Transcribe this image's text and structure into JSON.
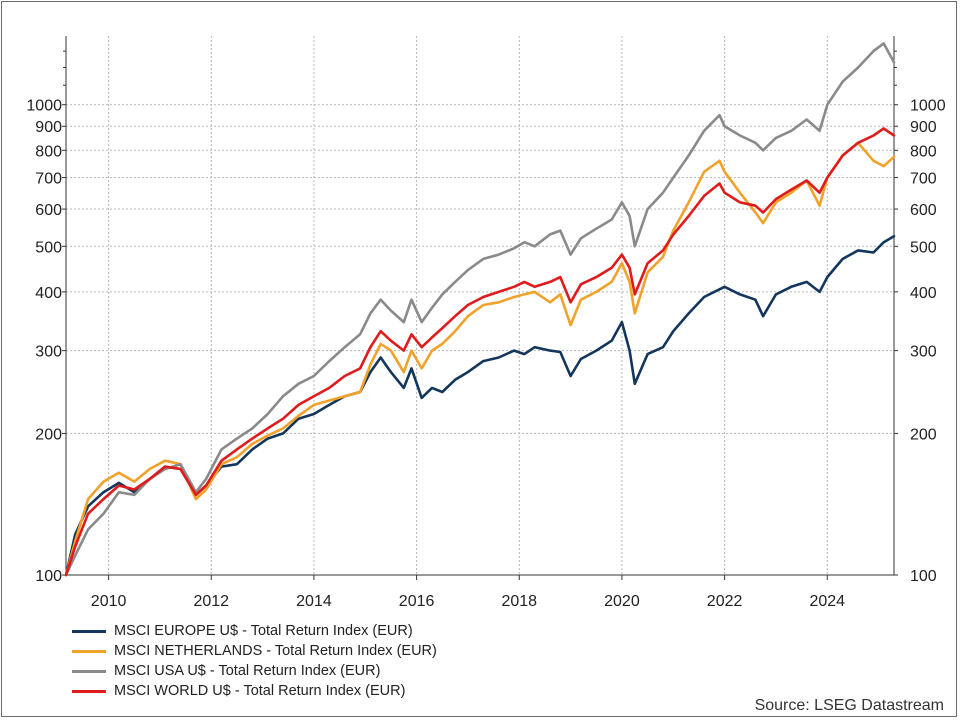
{
  "chart_data": {
    "type": "line",
    "y_scale": "log",
    "ylim": [
      100,
      1400
    ],
    "xlim": [
      2009.17,
      2025.3
    ],
    "yticks": [
      100,
      200,
      300,
      400,
      500,
      600,
      700,
      800,
      900,
      1000
    ],
    "xticks": [
      2010,
      2012,
      2014,
      2016,
      2018,
      2020,
      2022,
      2024
    ],
    "grid": true,
    "legend_position": "bottom",
    "source": "Source: LSEG Datastream",
    "series": [
      {
        "name": "MSCI EUROPE U$ - Total Return Index (EUR)",
        "color": "#14365c",
        "x": [
          2009.17,
          2009.35,
          2009.6,
          2009.9,
          2010.2,
          2010.5,
          2010.8,
          2011.1,
          2011.4,
          2011.7,
          2011.9,
          2012.2,
          2012.5,
          2012.8,
          2013.1,
          2013.4,
          2013.7,
          2014.0,
          2014.3,
          2014.6,
          2014.9,
          2015.1,
          2015.3,
          2015.5,
          2015.75,
          2015.9,
          2016.1,
          2016.3,
          2016.5,
          2016.75,
          2017.0,
          2017.3,
          2017.6,
          2017.9,
          2018.1,
          2018.3,
          2018.6,
          2018.8,
          2019.0,
          2019.2,
          2019.5,
          2019.8,
          2020.0,
          2020.15,
          2020.25,
          2020.5,
          2020.8,
          2021.0,
          2021.3,
          2021.6,
          2021.9,
          2022.0,
          2022.3,
          2022.6,
          2022.75,
          2023.0,
          2023.3,
          2023.6,
          2023.85,
          2024.0,
          2024.3,
          2024.6,
          2024.9,
          2025.1,
          2025.3
        ],
        "values": [
          100,
          122,
          140,
          150,
          157,
          150,
          160,
          170,
          168,
          148,
          155,
          170,
          172,
          185,
          195,
          200,
          215,
          220,
          230,
          240,
          245,
          270,
          290,
          270,
          250,
          275,
          238,
          250,
          245,
          260,
          270,
          285,
          290,
          300,
          295,
          305,
          300,
          298,
          265,
          288,
          300,
          315,
          345,
          300,
          255,
          295,
          305,
          330,
          360,
          390,
          405,
          410,
          395,
          385,
          355,
          395,
          410,
          420,
          400,
          430,
          470,
          490,
          485,
          510,
          525
        ]
      },
      {
        "name": "MSCI NETHERLANDS - Total Return Index (EUR)",
        "color": "#f0a22a",
        "x": [
          2009.17,
          2009.35,
          2009.6,
          2009.9,
          2010.2,
          2010.5,
          2010.8,
          2011.1,
          2011.4,
          2011.7,
          2011.9,
          2012.2,
          2012.5,
          2012.8,
          2013.1,
          2013.4,
          2013.7,
          2014.0,
          2014.3,
          2014.6,
          2014.9,
          2015.1,
          2015.3,
          2015.5,
          2015.75,
          2015.9,
          2016.1,
          2016.3,
          2016.5,
          2016.75,
          2017.0,
          2017.3,
          2017.6,
          2017.9,
          2018.1,
          2018.3,
          2018.6,
          2018.8,
          2019.0,
          2019.2,
          2019.5,
          2019.8,
          2020.0,
          2020.15,
          2020.25,
          2020.5,
          2020.8,
          2021.0,
          2021.3,
          2021.6,
          2021.9,
          2022.0,
          2022.3,
          2022.6,
          2022.75,
          2023.0,
          2023.3,
          2023.6,
          2023.85,
          2024.0,
          2024.3,
          2024.6,
          2024.9,
          2025.1,
          2025.3
        ],
        "values": [
          100,
          118,
          145,
          158,
          165,
          158,
          168,
          175,
          172,
          145,
          152,
          172,
          178,
          190,
          198,
          205,
          218,
          230,
          235,
          240,
          245,
          280,
          310,
          300,
          270,
          300,
          275,
          300,
          310,
          330,
          355,
          375,
          380,
          390,
          395,
          400,
          380,
          395,
          340,
          385,
          400,
          420,
          460,
          420,
          360,
          440,
          475,
          540,
          620,
          720,
          760,
          720,
          650,
          590,
          560,
          620,
          650,
          690,
          610,
          700,
          780,
          830,
          760,
          740,
          775
        ]
      },
      {
        "name": "MSCI USA U$ - Total Return Index (EUR)",
        "color": "#8a8a8a",
        "x": [
          2009.17,
          2009.35,
          2009.6,
          2009.9,
          2010.2,
          2010.5,
          2010.8,
          2011.1,
          2011.4,
          2011.7,
          2011.9,
          2012.2,
          2012.5,
          2012.8,
          2013.1,
          2013.4,
          2013.7,
          2014.0,
          2014.3,
          2014.6,
          2014.9,
          2015.1,
          2015.3,
          2015.5,
          2015.75,
          2015.9,
          2016.1,
          2016.3,
          2016.5,
          2016.75,
          2017.0,
          2017.3,
          2017.6,
          2017.9,
          2018.1,
          2018.3,
          2018.6,
          2018.8,
          2019.0,
          2019.2,
          2019.5,
          2019.8,
          2020.0,
          2020.15,
          2020.25,
          2020.5,
          2020.8,
          2021.0,
          2021.3,
          2021.6,
          2021.9,
          2022.0,
          2022.3,
          2022.6,
          2022.75,
          2023.0,
          2023.3,
          2023.6,
          2023.85,
          2024.0,
          2024.3,
          2024.6,
          2024.9,
          2025.1,
          2025.3
        ],
        "values": [
          100,
          110,
          125,
          135,
          150,
          148,
          160,
          168,
          172,
          150,
          160,
          185,
          195,
          205,
          220,
          240,
          255,
          265,
          285,
          305,
          325,
          360,
          385,
          365,
          345,
          385,
          345,
          370,
          395,
          420,
          445,
          470,
          480,
          495,
          510,
          500,
          530,
          540,
          480,
          520,
          545,
          570,
          620,
          580,
          500,
          600,
          650,
          700,
          780,
          880,
          950,
          900,
          860,
          830,
          800,
          850,
          880,
          930,
          880,
          1000,
          1120,
          1200,
          1300,
          1350,
          1230
        ]
      },
      {
        "name": "MSCI WORLD U$ - Total Return Index (EUR)",
        "color": "#e01b1b",
        "x": [
          2009.17,
          2009.35,
          2009.6,
          2009.9,
          2010.2,
          2010.5,
          2010.8,
          2011.1,
          2011.4,
          2011.7,
          2011.9,
          2012.2,
          2012.5,
          2012.8,
          2013.1,
          2013.4,
          2013.7,
          2014.0,
          2014.3,
          2014.6,
          2014.9,
          2015.1,
          2015.3,
          2015.5,
          2015.75,
          2015.9,
          2016.1,
          2016.3,
          2016.5,
          2016.75,
          2017.0,
          2017.3,
          2017.6,
          2017.9,
          2018.1,
          2018.3,
          2018.6,
          2018.8,
          2019.0,
          2019.2,
          2019.5,
          2019.8,
          2020.0,
          2020.15,
          2020.25,
          2020.5,
          2020.8,
          2021.0,
          2021.3,
          2021.6,
          2021.9,
          2022.0,
          2022.3,
          2022.6,
          2022.75,
          2023.0,
          2023.3,
          2023.6,
          2023.85,
          2024.0,
          2024.3,
          2024.6,
          2024.9,
          2025.1,
          2025.3
        ],
        "values": [
          100,
          115,
          135,
          145,
          155,
          152,
          160,
          170,
          168,
          148,
          155,
          175,
          185,
          195,
          205,
          215,
          230,
          240,
          250,
          265,
          275,
          305,
          330,
          315,
          300,
          325,
          305,
          320,
          335,
          355,
          375,
          390,
          400,
          410,
          420,
          410,
          420,
          430,
          380,
          415,
          430,
          450,
          480,
          450,
          395,
          460,
          490,
          530,
          580,
          640,
          680,
          650,
          620,
          610,
          590,
          630,
          660,
          690,
          650,
          700,
          780,
          830,
          860,
          890,
          860
        ]
      }
    ]
  }
}
